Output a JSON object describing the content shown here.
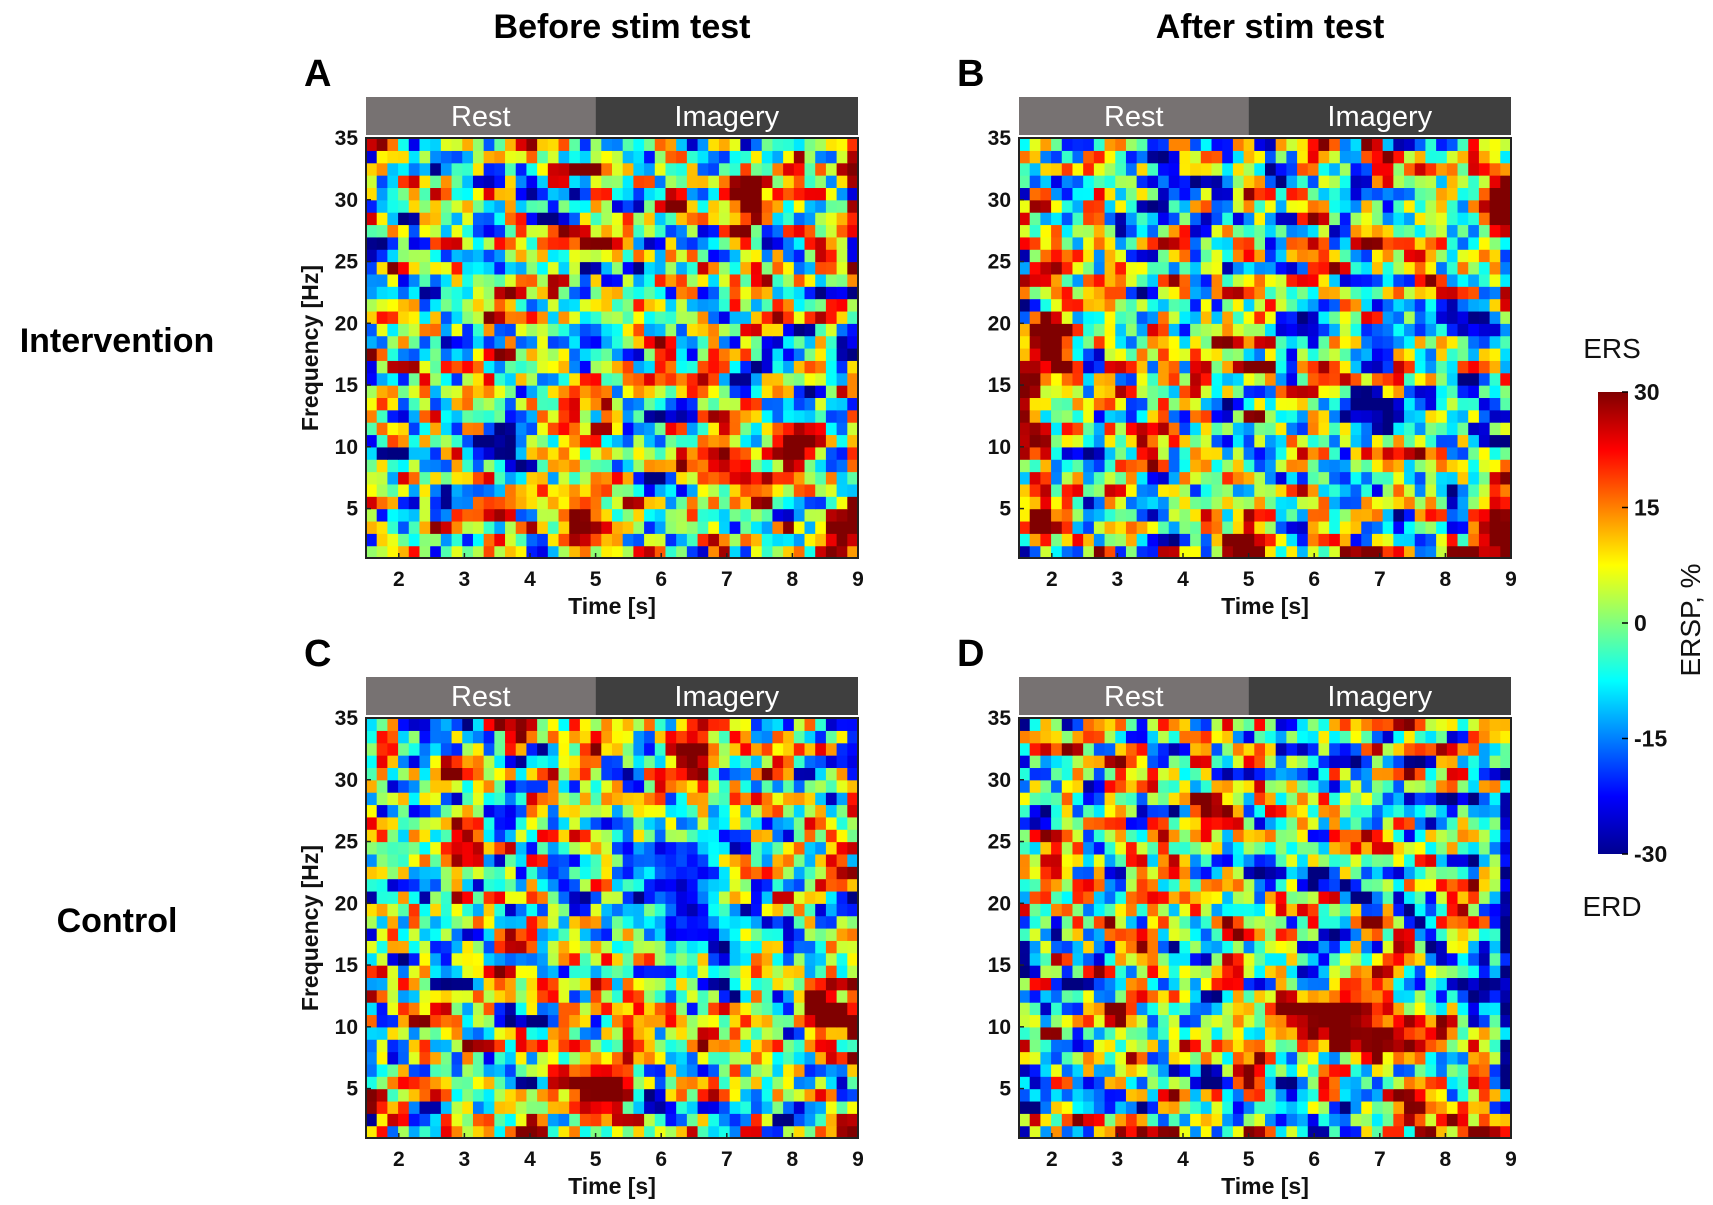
{
  "figure": {
    "column_titles": [
      "Before stim test",
      "After stim test"
    ],
    "row_labels": [
      "Intervention",
      "Control"
    ]
  },
  "colors": {
    "rest_bar": "#777272",
    "imagery_bar": "#3f3f3f",
    "bar_text": "#ffffff",
    "frame": "#222222"
  },
  "chart_data": {
    "type": "heatmap",
    "colormap": "jet",
    "x_axis": {
      "label": "Time [s]",
      "range": [
        1.5,
        9
      ],
      "ticks": [
        2,
        3,
        4,
        5,
        6,
        7,
        8,
        9
      ]
    },
    "y_axis": {
      "label": "Frequency [Hz]",
      "range": [
        1,
        35
      ],
      "ticks": [
        5,
        10,
        15,
        20,
        25,
        30,
        35
      ]
    },
    "phases": [
      {
        "label": "Rest",
        "start": 1.5,
        "end": 5
      },
      {
        "label": "Imagery",
        "start": 5,
        "end": 9
      }
    ],
    "colorbar": {
      "label": "ERSP, %",
      "range": [
        -30,
        30
      ],
      "ticks": [
        30,
        15,
        0,
        -15,
        -30
      ],
      "top_label": "ERS",
      "bottom_label": "ERD"
    },
    "panels": [
      {
        "id": "A",
        "row": "Intervention",
        "column": "Before stim test",
        "seed": 11,
        "blobs": [
          {
            "t": 7.3,
            "f": 30,
            "rt": 0.35,
            "rf": 2,
            "v": 28
          },
          {
            "t": 8.8,
            "f": 3,
            "rt": 0.35,
            "rf": 3,
            "v": 30
          },
          {
            "t": 4.8,
            "f": 4,
            "rt": 0.4,
            "rf": 3,
            "v": 26
          },
          {
            "t": 6.9,
            "f": 9,
            "rt": 0.45,
            "rf": 2.5,
            "v": 25
          },
          {
            "t": 8.0,
            "f": 10,
            "rt": 0.45,
            "rf": 2,
            "v": 26
          },
          {
            "t": 6.5,
            "f": 15,
            "rt": 0.4,
            "rf": 1.2,
            "v": 22
          },
          {
            "t": 4.6,
            "f": 13,
            "rt": 0.3,
            "rf": 2,
            "v": 22
          },
          {
            "t": 5.0,
            "f": 19,
            "rt": 0.5,
            "rf": 2,
            "v": -16
          }
        ]
      },
      {
        "id": "B",
        "row": "Intervention",
        "column": "After stim test",
        "seed": 23,
        "blobs": [
          {
            "t": 2.0,
            "f": 18,
            "rt": 0.35,
            "rf": 3,
            "v": 28
          },
          {
            "t": 1.6,
            "f": 14,
            "rt": 0.2,
            "rf": 4,
            "v": 24
          },
          {
            "t": 2.0,
            "f": 25,
            "rt": 0.3,
            "rf": 2,
            "v": 20
          },
          {
            "t": 8.8,
            "f": 30,
            "rt": 0.3,
            "rf": 4,
            "v": 25
          },
          {
            "t": 8.8,
            "f": 4,
            "rt": 0.35,
            "rf": 4,
            "v": 30
          },
          {
            "t": 5.0,
            "f": 2,
            "rt": 0.4,
            "rf": 2,
            "v": 28
          },
          {
            "t": 5.9,
            "f": 20,
            "rt": 0.4,
            "rf": 1.5,
            "v": -24
          },
          {
            "t": 6.8,
            "f": 13,
            "rt": 0.7,
            "rf": 1.2,
            "v": -26
          },
          {
            "t": 8.5,
            "f": 20,
            "rt": 0.6,
            "rf": 1.5,
            "v": -20
          },
          {
            "t": 1.8,
            "f": 4,
            "rt": 0.3,
            "rf": 2,
            "v": 24
          }
        ]
      },
      {
        "id": "C",
        "row": "Control",
        "column": "Before stim test",
        "seed": 37,
        "blobs": [
          {
            "t": 6.5,
            "f": 32,
            "rt": 0.35,
            "rf": 2.5,
            "v": 27
          },
          {
            "t": 5.0,
            "f": 5,
            "rt": 0.5,
            "rf": 3,
            "v": 28
          },
          {
            "t": 8.6,
            "f": 11,
            "rt": 0.45,
            "rf": 1.5,
            "v": 30
          },
          {
            "t": 8.8,
            "f": 2,
            "rt": 0.3,
            "rf": 1.5,
            "v": 28
          },
          {
            "t": 6.3,
            "f": 22,
            "rt": 0.8,
            "rf": 4,
            "v": -18
          },
          {
            "t": 6.5,
            "f": 18,
            "rt": 0.8,
            "rf": 2,
            "v": -15
          },
          {
            "t": 2.8,
            "f": 24,
            "rt": 0.3,
            "rf": 1.5,
            "v": 20
          }
        ]
      },
      {
        "id": "D",
        "row": "Control",
        "column": "After stim test",
        "seed": 53,
        "blobs": [
          {
            "t": 6.3,
            "f": 11,
            "rt": 1.1,
            "rf": 1.5,
            "v": 30
          },
          {
            "t": 7.0,
            "f": 9,
            "rt": 1.0,
            "rf": 1.2,
            "v": 28
          },
          {
            "t": 7.5,
            "f": 4,
            "rt": 0.4,
            "rf": 1.5,
            "v": 26
          },
          {
            "t": 8.6,
            "f": 1.5,
            "rt": 0.6,
            "rf": 1,
            "v": 28
          },
          {
            "t": 8.6,
            "f": 13,
            "rt": 0.5,
            "rf": 1,
            "v": -25
          },
          {
            "t": 5.2,
            "f": 23,
            "rt": 0.4,
            "rf": 2,
            "v": -20
          },
          {
            "t": 5.8,
            "f": 14,
            "rt": 0.3,
            "rf": 1,
            "v": -20
          },
          {
            "t": 8.9,
            "f": 20,
            "rt": 0.15,
            "rf": 15,
            "v": -22
          },
          {
            "t": 2.0,
            "f": 23,
            "rt": 0.3,
            "rf": 2,
            "v": 20
          }
        ]
      }
    ]
  }
}
